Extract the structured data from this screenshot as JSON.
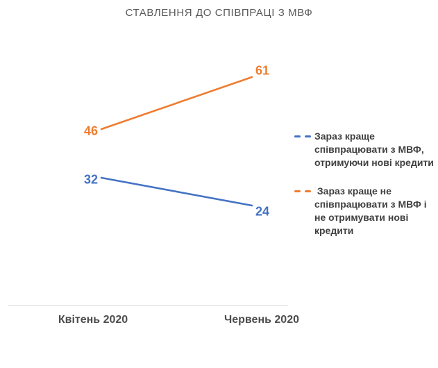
{
  "chart_data": {
    "type": "line",
    "title": "СТАВЛЕННЯ ДО СПІВПРАЦІ З МВФ",
    "categories": [
      "Квітень 2020",
      "Червень 2020"
    ],
    "series": [
      {
        "name": "Зараз краще співпрацювати з МВФ, отримуючи нові кредити",
        "values": [
          32,
          24
        ],
        "color": "#4472C4"
      },
      {
        "name": " Зараз краще не співпрацювати з МВФ і не отримувати нові кредити",
        "values": [
          46,
          61
        ],
        "color": "#ED7D31"
      }
    ],
    "legend_position": "right",
    "grid": false,
    "data_labels": true,
    "ylim": [
      0,
      80
    ],
    "xlabel": "",
    "ylabel": ""
  },
  "colors": {
    "axis_line": "#D9D9D9",
    "title_text": "#595959",
    "axis_label_text": "#4D4D4D",
    "legend_text": "#404040"
  }
}
